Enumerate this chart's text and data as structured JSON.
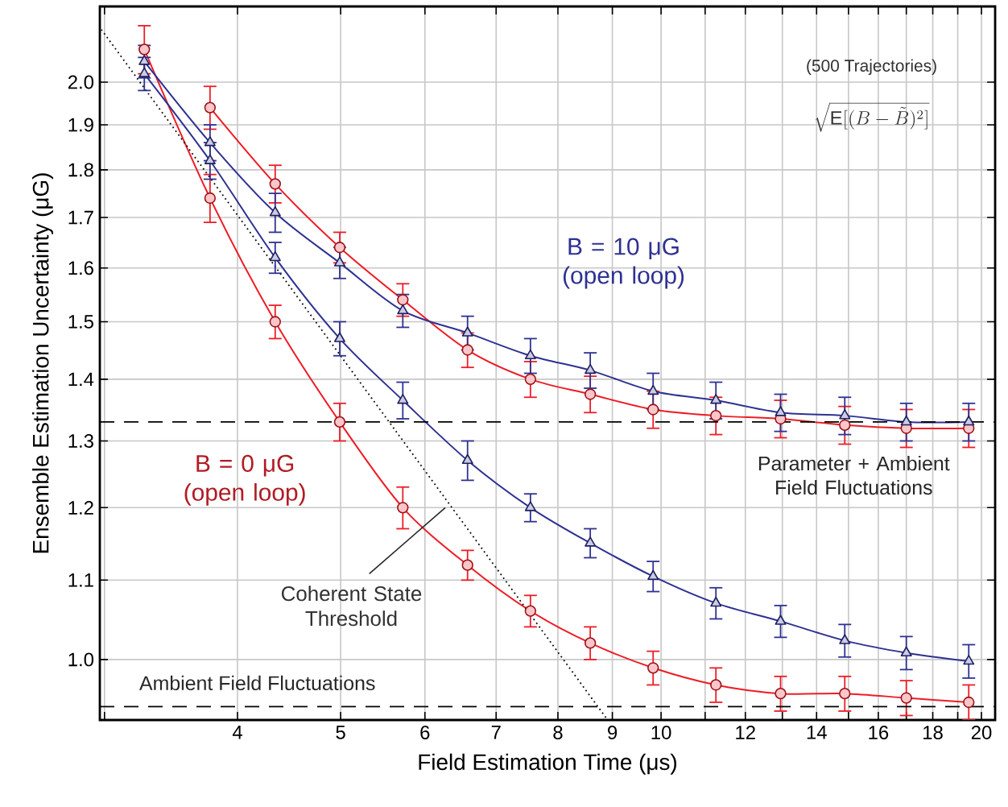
{
  "chart_data": {
    "type": "line",
    "xlabel": "Field Estimation Time (μs)",
    "ylabel": "Ensemble Estimation Uncertainty (μG)",
    "log": "xy",
    "grid": true,
    "xlim": [
      2.97,
      20.6
    ],
    "ylim": [
      0.93,
      2.19
    ],
    "xticks": [
      {
        "value": 3,
        "label": null
      },
      4,
      5,
      6,
      7,
      8,
      9,
      10,
      {
        "value": 11,
        "label": null
      },
      12,
      {
        "value": 13,
        "label": null
      },
      14,
      {
        "value": 15,
        "label": null
      },
      16,
      {
        "value": 17,
        "label": null
      },
      18,
      {
        "value": 19,
        "label": null
      },
      20
    ],
    "yticks": [
      {
        "value": 1.0,
        "label": "1.0"
      },
      1.1,
      1.2,
      1.3,
      1.4,
      1.5,
      1.6,
      1.7,
      1.8,
      1.9,
      {
        "value": 2.0,
        "label": "2.0"
      }
    ],
    "x": [
      3.27,
      3.77,
      4.34,
      4.99,
      5.72,
      6.58,
      7.54,
      8.58,
      9.83,
      11.26,
      12.95,
      14.88,
      17.0,
      19.46
    ],
    "series": [
      {
        "color": "#ee1c25",
        "marker": "circle",
        "values": [
          2.08,
          1.74,
          1.5,
          1.33,
          1.2,
          1.12,
          1.06,
          1.02,
          0.99,
          0.97,
          0.96,
          0.96,
          0.955,
          0.95
        ],
        "errors": [
          0.06,
          0.05,
          0.03,
          0.03,
          0.03,
          0.02,
          0.02,
          0.02,
          0.02,
          0.02,
          0.02,
          0.02,
          0.02,
          0.02
        ]
      },
      {
        "color": "#ee1c25",
        "marker": "circle",
        "values": [
          null,
          1.94,
          1.77,
          1.64,
          1.54,
          1.45,
          1.4,
          1.375,
          1.35,
          1.34,
          1.335,
          1.325,
          1.32,
          1.32
        ],
        "errors": [
          null,
          0.05,
          0.04,
          0.03,
          0.03,
          0.03,
          0.03,
          0.03,
          0.03,
          0.03,
          0.03,
          0.03,
          0.03,
          0.03
        ]
      },
      {
        "color": "#2e3192",
        "marker": "triangle",
        "values": [
          2.05,
          1.86,
          1.71,
          1.61,
          1.52,
          1.48,
          1.44,
          1.415,
          1.38,
          1.365,
          1.345,
          1.34,
          1.33,
          1.33
        ],
        "errors": [
          0.04,
          0.04,
          0.04,
          0.03,
          0.03,
          0.03,
          0.03,
          0.03,
          0.03,
          0.03,
          0.03,
          0.03,
          0.03,
          0.03
        ]
      },
      {
        "color": "#2e3192",
        "marker": "triangle",
        "values": [
          2.02,
          1.82,
          1.62,
          1.47,
          1.365,
          1.27,
          1.2,
          1.15,
          1.105,
          1.07,
          1.047,
          1.023,
          1.008,
          0.998
        ],
        "errors": [
          0.04,
          0.04,
          0.03,
          0.03,
          0.03,
          0.03,
          0.02,
          0.02,
          0.02,
          0.02,
          0.02,
          0.02,
          0.02,
          0.02
        ]
      },
      {
        "type": "line",
        "color": "#000000",
        "marker": "none",
        "line_style": "dotted",
        "x": [
          2.98,
          8.91
        ],
        "values": [
          2.13,
          0.93
        ]
      }
    ],
    "ref_lines": [
      {
        "axis": "y",
        "value": 1.33,
        "label": "Parameter + Ambient Field Fluctuations",
        "color": "#000000",
        "line_style": "dashed"
      },
      {
        "axis": "y",
        "value": 0.945,
        "label": "Ambient Field Fluctuations",
        "color": "#000000",
        "line_style": "dashed"
      }
    ],
    "annotations": [
      "B = 10 μG (open loop)",
      "B = 0 μG (open loop)",
      {
        "text": "Coherent State Threshold",
        "x": 6.27,
        "y": 1.2
      },
      "(500 Trajectories)",
      "\\sqrt{\\mathrm{E}[(B-\\tilde{B})^2]}"
    ]
  }
}
